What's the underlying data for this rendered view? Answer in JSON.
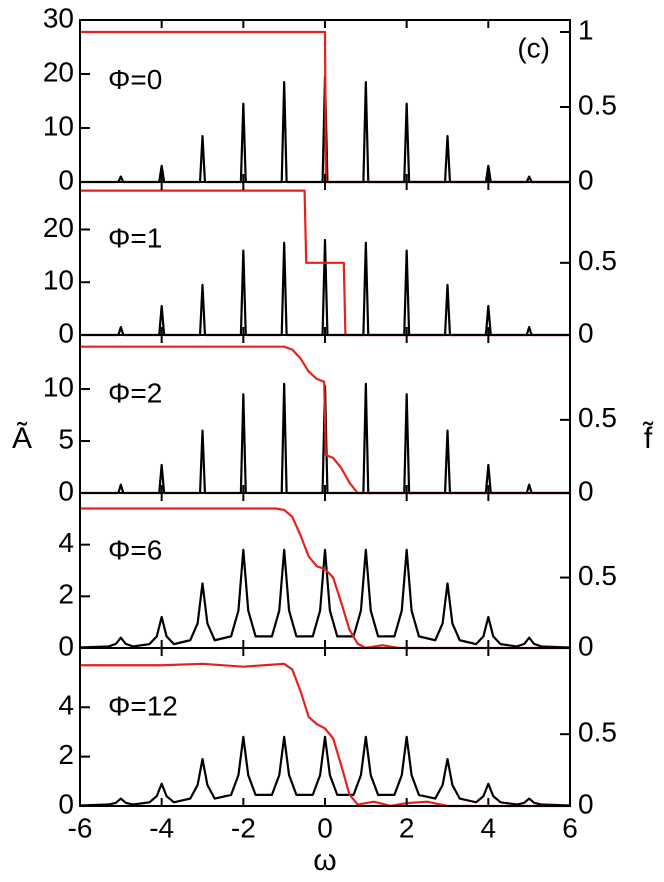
{
  "figure": {
    "xlabel": "ω",
    "ylabel": "Ã",
    "y2label": "f̃",
    "label": "(c)"
  },
  "chart_data": [
    {
      "type": "line",
      "annotation": "Φ=0",
      "xlim": [
        -6,
        6
      ],
      "xticks": [
        -6,
        -4,
        -2,
        0,
        2,
        4,
        6
      ],
      "xticklabels": false,
      "ylim": [
        0,
        30
      ],
      "yticks": [
        0,
        10,
        20,
        30
      ],
      "y2lim": [
        0,
        1.08
      ],
      "y2ticks": [
        0,
        0.5,
        1
      ],
      "x": [
        -6,
        -5.06,
        -5,
        -4.94,
        -4.06,
        -4,
        -3.94,
        -3.06,
        -3,
        -2.94,
        -2.06,
        -2,
        -1.94,
        -1.06,
        -1,
        -0.94,
        -0.06,
        0,
        0.06,
        0.94,
        1,
        1.06,
        1.94,
        2,
        2.06,
        2.94,
        3,
        3.06,
        3.94,
        4,
        4.06,
        4.94,
        5,
        5.06,
        6
      ],
      "series": [
        {
          "color": "#000000",
          "values": [
            0,
            0,
            1,
            0,
            0,
            3,
            0,
            0,
            8.5,
            0,
            0,
            14.5,
            0,
            0,
            18.5,
            0,
            0,
            19.5,
            0,
            0,
            18.5,
            0,
            0,
            14.5,
            0,
            0,
            8.5,
            0,
            0,
            3,
            0,
            0,
            1,
            0,
            0
          ]
        },
        {
          "color": "#e8201c",
          "axis": "y2",
          "x": [
            -6,
            0,
            0.02,
            6
          ],
          "values": [
            1,
            1,
            0,
            0
          ]
        }
      ]
    },
    {
      "type": "line",
      "annotation": "Φ=1",
      "xlim": [
        -6,
        6
      ],
      "xticks": [
        -6,
        -4,
        -2,
        0,
        2,
        4,
        6
      ],
      "xticklabels": false,
      "ylim": [
        0,
        29
      ],
      "yticks": [
        0,
        10,
        20
      ],
      "y2lim": [
        0,
        1.06
      ],
      "y2ticks": [
        0,
        0.5
      ],
      "x": [
        -6,
        -5.06,
        -5,
        -4.94,
        -4.06,
        -4,
        -3.94,
        -3.06,
        -3,
        -2.94,
        -2.06,
        -2,
        -1.94,
        -1.06,
        -1,
        -0.94,
        -0.06,
        0,
        0.06,
        0.94,
        1,
        1.06,
        1.94,
        2,
        2.06,
        2.94,
        3,
        3.06,
        3.94,
        4,
        4.06,
        4.94,
        5,
        5.06,
        6
      ],
      "series": [
        {
          "color": "#000000",
          "values": [
            0,
            0,
            1.5,
            0,
            0,
            5.5,
            0,
            0,
            9.5,
            0,
            0,
            16,
            0,
            0,
            17.5,
            0,
            0,
            18,
            0,
            0,
            17.5,
            0,
            0,
            16,
            0,
            0,
            9.5,
            0,
            0,
            5.5,
            0,
            0,
            1.5,
            0,
            0
          ]
        },
        {
          "color": "#e8201c",
          "axis": "y2",
          "x": [
            -6,
            -0.5,
            -0.46,
            0.46,
            0.5,
            6
          ],
          "values": [
            1,
            1,
            0.5,
            0.5,
            0,
            0
          ]
        }
      ]
    },
    {
      "type": "line",
      "annotation": "Φ=2",
      "xlim": [
        -6,
        6
      ],
      "xticks": [
        -6,
        -4,
        -2,
        0,
        2,
        4,
        6
      ],
      "xticklabels": false,
      "ylim": [
        0,
        15.2
      ],
      "yticks": [
        0,
        5,
        10
      ],
      "y2lim": [
        0,
        1.08
      ],
      "y2ticks": [
        0,
        0.5
      ],
      "x": [
        -6,
        -5.06,
        -5,
        -4.94,
        -4.06,
        -4,
        -3.94,
        -3.06,
        -3,
        -2.94,
        -2.06,
        -2,
        -1.94,
        -1.06,
        -1,
        -0.94,
        -0.06,
        0,
        0.06,
        0.94,
        1,
        1.06,
        1.94,
        2,
        2.06,
        2.94,
        3,
        3.06,
        3.94,
        4,
        4.06,
        4.94,
        5,
        5.06,
        6
      ],
      "series": [
        {
          "color": "#000000",
          "values": [
            0,
            0,
            0.8,
            0,
            0,
            2.7,
            0,
            0,
            6,
            0,
            0,
            9.5,
            0,
            0,
            10.5,
            0,
            0,
            10.3,
            0,
            0,
            10.5,
            0,
            0,
            9.5,
            0,
            0,
            6,
            0,
            0,
            2.7,
            0,
            0,
            0.8,
            0,
            0
          ]
        },
        {
          "color": "#e8201c",
          "axis": "y2",
          "x": [
            -6,
            -1,
            -0.8,
            -0.6,
            -0.4,
            -0.2,
            -0.02,
            0.02,
            0.2,
            0.4,
            0.6,
            0.8,
            6
          ],
          "values": [
            1,
            1,
            0.98,
            0.92,
            0.83,
            0.78,
            0.76,
            0.26,
            0.24,
            0.17,
            0.07,
            0,
            0
          ]
        }
      ]
    },
    {
      "type": "line",
      "annotation": "Φ=6",
      "xlim": [
        -6,
        6
      ],
      "xticks": [
        -6,
        -4,
        -2,
        0,
        2,
        4,
        6
      ],
      "xticklabels": false,
      "ylim": [
        0,
        6
      ],
      "yticks": [
        0,
        2,
        4
      ],
      "y2lim": [
        0,
        1.1
      ],
      "y2ticks": [
        0,
        0.5
      ],
      "x": [
        -6,
        -5.3,
        -5.12,
        -5,
        -4.88,
        -4.7,
        -4.3,
        -4.12,
        -4,
        -3.88,
        -3.7,
        -3.3,
        -3.12,
        -3,
        -2.88,
        -2.7,
        -2.3,
        -2.12,
        -2,
        -1.88,
        -1.7,
        -1.3,
        -1.12,
        -1,
        -0.88,
        -0.7,
        -0.3,
        -0.12,
        0,
        0.12,
        0.3,
        0.7,
        0.88,
        1,
        1.12,
        1.3,
        1.7,
        1.88,
        2,
        2.12,
        2.3,
        2.7,
        2.88,
        3,
        3.12,
        3.3,
        3.7,
        3.88,
        4,
        4.12,
        4.3,
        4.7,
        4.88,
        5,
        5.12,
        5.3,
        6
      ],
      "series": [
        {
          "color": "#000000",
          "values": [
            0.02,
            0.06,
            0.16,
            0.4,
            0.16,
            0.06,
            0.15,
            0.45,
            1.2,
            0.45,
            0.15,
            0.3,
            0.95,
            2.5,
            0.95,
            0.3,
            0.45,
            1.45,
            3.8,
            1.45,
            0.45,
            0.45,
            1.45,
            3.8,
            1.45,
            0.45,
            0.45,
            1.45,
            3.8,
            1.45,
            0.45,
            0.45,
            1.45,
            3.8,
            1.45,
            0.45,
            0.45,
            1.45,
            3.8,
            1.45,
            0.45,
            0.3,
            0.95,
            2.5,
            0.95,
            0.3,
            0.15,
            0.45,
            1.2,
            0.45,
            0.15,
            0.06,
            0.16,
            0.4,
            0.16,
            0.06,
            0.02
          ]
        },
        {
          "color": "#e8201c",
          "axis": "y2",
          "x": [
            -6,
            -1.2,
            -1,
            -0.8,
            -0.6,
            -0.4,
            -0.2,
            0,
            0.2,
            0.4,
            0.6,
            0.8,
            1,
            1.4,
            1.8,
            6
          ],
          "values": [
            0.99,
            0.99,
            0.98,
            0.93,
            0.8,
            0.65,
            0.58,
            0.56,
            0.5,
            0.32,
            0.13,
            0.03,
            0,
            0.02,
            0,
            0
          ]
        }
      ]
    },
    {
      "type": "line",
      "annotation": "Φ=12",
      "xlim": [
        -6,
        6
      ],
      "xticks": [
        -6,
        -4,
        -2,
        0,
        2,
        4,
        6
      ],
      "xticklabels": true,
      "ylim": [
        0,
        6.4
      ],
      "yticks": [
        0,
        2,
        4
      ],
      "y2lim": [
        0,
        1.1
      ],
      "y2ticks": [
        0,
        0.5
      ],
      "x": [
        -6,
        -5.3,
        -5.12,
        -5,
        -4.88,
        -4.7,
        -4.3,
        -4.12,
        -4,
        -3.88,
        -3.7,
        -3.3,
        -3.12,
        -3,
        -2.88,
        -2.7,
        -2.3,
        -2.12,
        -2,
        -1.88,
        -1.7,
        -1.3,
        -1.12,
        -1,
        -0.88,
        -0.7,
        -0.3,
        -0.12,
        0,
        0.12,
        0.3,
        0.7,
        0.88,
        1,
        1.12,
        1.3,
        1.7,
        1.88,
        2,
        2.12,
        2.3,
        2.7,
        2.88,
        3,
        3.12,
        3.3,
        3.7,
        3.88,
        4,
        4.12,
        4.3,
        4.7,
        4.88,
        5,
        5.12,
        5.3,
        6
      ],
      "series": [
        {
          "color": "#000000",
          "values": [
            0.02,
            0.06,
            0.13,
            0.3,
            0.13,
            0.06,
            0.15,
            0.4,
            0.9,
            0.4,
            0.15,
            0.3,
            0.85,
            1.9,
            0.85,
            0.3,
            0.45,
            1.25,
            2.8,
            1.25,
            0.45,
            0.45,
            1.25,
            2.8,
            1.25,
            0.45,
            0.45,
            1.25,
            2.8,
            1.25,
            0.45,
            0.45,
            1.25,
            2.8,
            1.25,
            0.45,
            0.45,
            1.25,
            2.8,
            1.25,
            0.45,
            0.3,
            0.85,
            1.9,
            0.85,
            0.3,
            0.15,
            0.4,
            0.9,
            0.4,
            0.15,
            0.06,
            0.13,
            0.3,
            0.13,
            0.06,
            0.02
          ]
        },
        {
          "color": "#e8201c",
          "axis": "y2",
          "x": [
            -6,
            -4,
            -3,
            -2,
            -1.5,
            -1,
            -0.8,
            -0.6,
            -0.4,
            -0.2,
            0,
            0.2,
            0.4,
            0.6,
            0.8,
            1.2,
            1.6,
            2,
            2.5,
            3,
            6
          ],
          "values": [
            0.98,
            0.98,
            0.99,
            0.97,
            0.98,
            0.99,
            0.95,
            0.8,
            0.62,
            0.57,
            0.54,
            0.47,
            0.28,
            0.08,
            0.01,
            0.03,
            0,
            0.02,
            0.03,
            0,
            0
          ]
        }
      ]
    }
  ]
}
